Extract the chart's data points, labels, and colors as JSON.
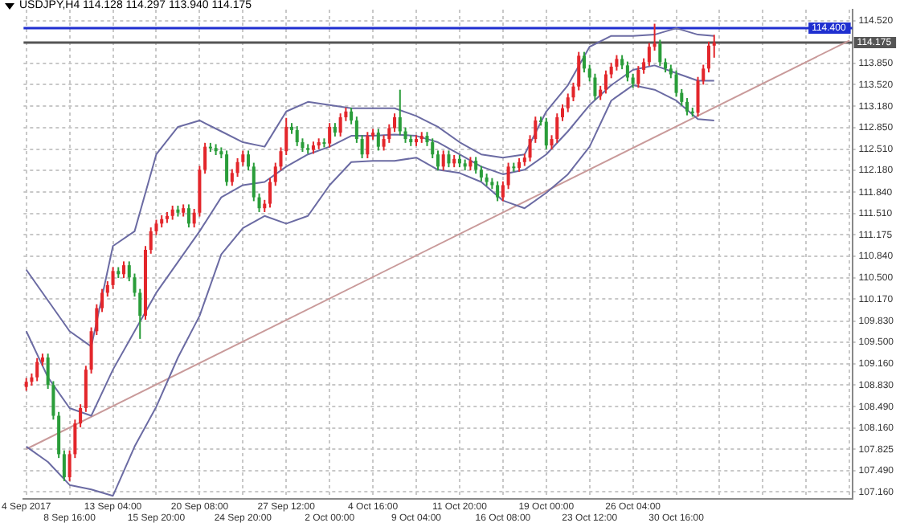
{
  "chart_data": {
    "type": "candlestick",
    "title": "USDJPY,H4 114.128 114.297 113.940 114.175",
    "categories": [
      "4 Sep 2017",
      null,
      null,
      null,
      null,
      null,
      null,
      null,
      "8 Sep 16:00",
      null,
      null,
      null,
      null,
      null,
      null,
      null,
      "13 Sep 04:00",
      null,
      null,
      null,
      null,
      null,
      null,
      null,
      "15 Sep 20:00",
      null,
      null,
      null,
      null,
      null,
      null,
      null,
      "20 Sep 08:00",
      null,
      null,
      null,
      null,
      null,
      null,
      null,
      "24 Sep 20:00",
      null,
      null,
      null,
      null,
      null,
      null,
      null,
      "27 Sep 12:00",
      null,
      null,
      null,
      null,
      null,
      null,
      null,
      "2 Oct 00:00",
      null,
      null,
      null,
      null,
      null,
      null,
      null,
      "4 Oct 16:00",
      null,
      null,
      null,
      null,
      null,
      null,
      null,
      "9 Oct 04:00",
      null,
      null,
      null,
      null,
      null,
      null,
      null,
      "11 Oct 20:00",
      null,
      null,
      null,
      null,
      null,
      null,
      null,
      "16 Oct 08:00",
      null,
      null,
      null,
      null,
      null,
      null,
      null,
      "19 Oct 00:00",
      null,
      null,
      null,
      null,
      null,
      null,
      null,
      "23 Oct 12:00",
      null,
      null,
      null,
      null,
      null,
      null,
      null,
      "26 Oct 04:00",
      null,
      null,
      null,
      null,
      null,
      null,
      null,
      "30 Oct 16:00",
      null,
      null,
      null,
      null,
      null,
      null,
      null,
      null,
      null,
      null,
      null,
      null,
      null,
      null,
      null,
      null,
      null,
      null,
      null,
      null,
      null,
      null,
      null,
      null,
      null,
      null,
      null,
      null,
      null,
      null,
      null,
      null
    ],
    "ohlc": [
      [
        108.8,
        108.94,
        108.74,
        108.88
      ],
      [
        108.88,
        109.01,
        108.82,
        108.95
      ],
      [
        108.95,
        109.25,
        108.89,
        109.19
      ],
      [
        109.19,
        109.32,
        109.13,
        109.26
      ],
      [
        109.26,
        109.32,
        108.77,
        108.83
      ],
      [
        108.83,
        108.89,
        108.29,
        108.35
      ],
      [
        108.35,
        108.41,
        107.69,
        107.75
      ],
      [
        107.75,
        107.81,
        107.33,
        107.39
      ],
      [
        107.39,
        107.81,
        107.33,
        107.75
      ],
      [
        107.75,
        108.29,
        107.69,
        108.23
      ],
      [
        108.23,
        108.53,
        108.17,
        108.47
      ],
      [
        108.47,
        109.13,
        108.41,
        109.07
      ],
      [
        109.07,
        109.73,
        109.01,
        109.67
      ],
      [
        109.67,
        110.09,
        109.61,
        110.03
      ],
      [
        110.03,
        110.33,
        109.97,
        110.27
      ],
      [
        110.27,
        110.45,
        110.21,
        110.39
      ],
      [
        110.39,
        110.67,
        110.33,
        110.61
      ],
      [
        110.61,
        110.67,
        110.5,
        110.56
      ],
      [
        110.56,
        110.76,
        110.5,
        110.7
      ],
      [
        110.7,
        110.76,
        110.45,
        110.51
      ],
      [
        110.51,
        110.57,
        110.21,
        110.27
      ],
      [
        110.27,
        110.33,
        109.55,
        109.91
      ],
      [
        109.91,
        111.0,
        109.85,
        110.94
      ],
      [
        110.94,
        111.29,
        110.88,
        111.23
      ],
      [
        111.23,
        111.41,
        111.17,
        111.35
      ],
      [
        111.35,
        111.48,
        111.29,
        111.42
      ],
      [
        111.42,
        111.53,
        111.36,
        111.47
      ],
      [
        111.47,
        111.63,
        111.41,
        111.57
      ],
      [
        111.57,
        111.63,
        111.46,
        111.52
      ],
      [
        111.52,
        111.65,
        111.46,
        111.59
      ],
      [
        111.59,
        111.65,
        111.29,
        111.35
      ],
      [
        111.35,
        111.58,
        111.29,
        111.52
      ],
      [
        111.52,
        112.25,
        111.46,
        112.19
      ],
      [
        112.19,
        112.61,
        112.13,
        112.55
      ],
      [
        112.55,
        112.61,
        112.47,
        112.53
      ],
      [
        112.53,
        112.59,
        112.42,
        112.48
      ],
      [
        112.48,
        112.54,
        112.37,
        112.43
      ],
      [
        112.43,
        112.49,
        111.94,
        112.0
      ],
      [
        112.0,
        112.2,
        111.94,
        112.14
      ],
      [
        112.14,
        112.37,
        112.08,
        112.31
      ],
      [
        112.31,
        112.49,
        112.25,
        112.43
      ],
      [
        112.43,
        112.49,
        112.18,
        112.24
      ],
      [
        112.24,
        112.3,
        111.7,
        111.76
      ],
      [
        111.76,
        111.82,
        111.53,
        111.59
      ],
      [
        111.59,
        111.72,
        111.53,
        111.66
      ],
      [
        111.66,
        112.06,
        111.6,
        112.0
      ],
      [
        112.0,
        112.3,
        111.94,
        112.24
      ],
      [
        112.24,
        112.54,
        112.18,
        112.48
      ],
      [
        112.48,
        113.0,
        112.42,
        112.86
      ],
      [
        112.86,
        112.92,
        112.75,
        112.81
      ],
      [
        112.81,
        112.87,
        112.56,
        112.62
      ],
      [
        112.62,
        112.68,
        112.47,
        112.53
      ],
      [
        112.53,
        112.59,
        112.44,
        112.5
      ],
      [
        112.5,
        112.63,
        112.44,
        112.57
      ],
      [
        112.57,
        112.68,
        112.51,
        112.62
      ],
      [
        112.62,
        112.68,
        112.54,
        112.6
      ],
      [
        112.6,
        112.92,
        112.54,
        112.86
      ],
      [
        112.86,
        112.92,
        112.71,
        112.77
      ],
      [
        112.77,
        113.07,
        112.71,
        113.01
      ],
      [
        113.01,
        113.16,
        112.95,
        113.1
      ],
      [
        113.1,
        113.16,
        112.9,
        112.96
      ],
      [
        112.96,
        113.02,
        112.61,
        112.67
      ],
      [
        112.67,
        112.73,
        112.37,
        112.43
      ],
      [
        112.43,
        112.78,
        112.37,
        112.72
      ],
      [
        112.72,
        112.83,
        112.66,
        112.77
      ],
      [
        112.77,
        112.83,
        112.49,
        112.55
      ],
      [
        112.55,
        112.73,
        112.49,
        112.67
      ],
      [
        112.67,
        112.9,
        112.61,
        112.84
      ],
      [
        112.84,
        113.07,
        112.78,
        113.01
      ],
      [
        113.01,
        113.44,
        112.73,
        112.79
      ],
      [
        112.79,
        112.85,
        112.61,
        112.67
      ],
      [
        112.67,
        112.73,
        112.56,
        112.62
      ],
      [
        112.62,
        112.73,
        112.56,
        112.67
      ],
      [
        112.67,
        112.78,
        112.61,
        112.72
      ],
      [
        112.72,
        112.78,
        112.56,
        112.62
      ],
      [
        112.62,
        112.68,
        112.37,
        112.43
      ],
      [
        112.43,
        112.49,
        112.18,
        112.24
      ],
      [
        112.24,
        112.49,
        112.18,
        112.43
      ],
      [
        112.43,
        112.49,
        112.23,
        112.29
      ],
      [
        112.29,
        112.42,
        112.23,
        112.36
      ],
      [
        112.36,
        112.42,
        112.23,
        112.29
      ],
      [
        112.29,
        112.35,
        112.18,
        112.24
      ],
      [
        112.24,
        112.39,
        112.18,
        112.33
      ],
      [
        112.33,
        112.39,
        112.13,
        112.19
      ],
      [
        112.19,
        112.25,
        112.01,
        112.07
      ],
      [
        112.07,
        112.13,
        111.94,
        112.0
      ],
      [
        112.0,
        112.06,
        111.89,
        111.95
      ],
      [
        111.95,
        112.01,
        111.7,
        111.76
      ],
      [
        111.76,
        112.01,
        111.7,
        111.95
      ],
      [
        111.95,
        112.3,
        111.89,
        112.24
      ],
      [
        112.24,
        112.3,
        112.16,
        112.22
      ],
      [
        112.22,
        112.37,
        112.16,
        112.31
      ],
      [
        112.31,
        112.44,
        112.25,
        112.38
      ],
      [
        112.38,
        112.73,
        112.32,
        112.67
      ],
      [
        112.67,
        113.02,
        112.61,
        112.96
      ],
      [
        112.96,
        113.02,
        112.88,
        112.94
      ],
      [
        112.94,
        113.0,
        112.51,
        112.57
      ],
      [
        112.57,
        112.73,
        112.51,
        112.67
      ],
      [
        112.67,
        113.07,
        112.61,
        113.01
      ],
      [
        113.01,
        113.21,
        112.95,
        113.15
      ],
      [
        113.15,
        113.38,
        113.09,
        113.32
      ],
      [
        113.32,
        113.55,
        113.26,
        113.49
      ],
      [
        113.49,
        114.03,
        113.43,
        113.97
      ],
      [
        113.97,
        114.03,
        113.71,
        113.77
      ],
      [
        113.77,
        113.83,
        113.57,
        113.63
      ],
      [
        113.63,
        113.69,
        113.28,
        113.34
      ],
      [
        113.34,
        113.5,
        113.28,
        113.44
      ],
      [
        113.44,
        113.74,
        113.38,
        113.68
      ],
      [
        113.68,
        113.86,
        113.62,
        113.8
      ],
      [
        113.8,
        113.98,
        113.74,
        113.92
      ],
      [
        113.92,
        113.98,
        113.76,
        113.82
      ],
      [
        113.82,
        113.88,
        113.57,
        113.63
      ],
      [
        113.63,
        113.69,
        113.47,
        113.53
      ],
      [
        113.53,
        113.81,
        113.47,
        113.75
      ],
      [
        113.75,
        113.93,
        113.69,
        113.87
      ],
      [
        113.87,
        114.17,
        113.81,
        114.11
      ],
      [
        114.11,
        114.47,
        114.05,
        114.16
      ],
      [
        114.16,
        114.22,
        113.81,
        113.87
      ],
      [
        113.87,
        113.93,
        113.71,
        113.77
      ],
      [
        113.77,
        113.83,
        113.62,
        113.68
      ],
      [
        113.68,
        113.74,
        113.33,
        113.39
      ],
      [
        113.39,
        113.45,
        113.19,
        113.25
      ],
      [
        113.25,
        113.31,
        113.04,
        113.1
      ],
      [
        113.1,
        113.16,
        113.02,
        113.08
      ],
      [
        113.08,
        113.64,
        113.02,
        113.58
      ],
      [
        113.58,
        113.83,
        113.52,
        113.77
      ],
      [
        113.77,
        114.19,
        113.71,
        114.128
      ],
      [
        114.128,
        114.297,
        113.94,
        114.175
      ],
      null,
      null,
      null,
      null,
      null,
      null,
      null,
      null,
      null,
      null,
      null,
      null,
      null,
      null,
      null,
      null,
      null,
      null,
      null,
      null,
      null,
      null,
      null,
      null,
      null
    ],
    "colors": [
      "#e3262b",
      "#e3262b",
      "#e3262b",
      "#e3262b",
      "#2a9d3a",
      "#2a9d3a",
      "#2a9d3a",
      "#2a9d3a",
      "#e3262b",
      "#e3262b",
      "#e3262b",
      "#e3262b",
      "#e3262b",
      "#e3262b",
      "#e3262b",
      "#e3262b",
      "#e3262b",
      "#2a9d3a",
      "#e3262b",
      "#2a9d3a",
      "#2a9d3a",
      "#2a9d3a",
      "#e3262b",
      "#e3262b",
      "#e3262b",
      "#e3262b",
      "#e3262b",
      "#e3262b",
      "#2a9d3a",
      "#e3262b",
      "#2a9d3a",
      "#e3262b",
      "#e3262b",
      "#e3262b",
      "#2a9d3a",
      "#2a9d3a",
      "#2a9d3a",
      "#2a9d3a",
      "#e3262b",
      "#e3262b",
      "#e3262b",
      "#2a9d3a",
      "#2a9d3a",
      "#2a9d3a",
      "#e3262b",
      "#e3262b",
      "#e3262b",
      "#e3262b",
      "#e3262b",
      "#2a9d3a",
      "#2a9d3a",
      "#2a9d3a",
      "#2a9d3a",
      "#e3262b",
      "#e3262b",
      "#2a9d3a",
      "#e3262b",
      "#2a9d3a",
      "#e3262b",
      "#e3262b",
      "#2a9d3a",
      "#2a9d3a",
      "#2a9d3a",
      "#e3262b",
      "#e3262b",
      "#2a9d3a",
      "#e3262b",
      "#e3262b",
      "#e3262b",
      "#2a9d3a",
      "#2a9d3a",
      "#2a9d3a",
      "#e3262b",
      "#e3262b",
      "#2a9d3a",
      "#2a9d3a",
      "#2a9d3a",
      "#e3262b",
      "#2a9d3a",
      "#e3262b",
      "#2a9d3a",
      "#2a9d3a",
      "#e3262b",
      "#2a9d3a",
      "#2a9d3a",
      "#2a9d3a",
      "#2a9d3a",
      "#2a9d3a",
      "#e3262b",
      "#e3262b",
      "#2a9d3a",
      "#e3262b",
      "#e3262b",
      "#e3262b",
      "#e3262b",
      "#2a9d3a",
      "#2a9d3a",
      "#e3262b",
      "#e3262b",
      "#e3262b",
      "#e3262b",
      "#e3262b",
      "#e3262b",
      "#2a9d3a",
      "#2a9d3a",
      "#2a9d3a",
      "#e3262b",
      "#e3262b",
      "#e3262b",
      "#e3262b",
      "#2a9d3a",
      "#2a9d3a",
      "#2a9d3a",
      "#e3262b",
      "#e3262b",
      "#e3262b",
      "#e3262b",
      "#2a9d3a",
      "#2a9d3a",
      "#2a9d3a",
      "#2a9d3a",
      "#2a9d3a",
      "#2a9d3a",
      "#2a9d3a",
      "#e3262b",
      "#e3262b",
      "#e3262b",
      "#e3262b",
      null,
      null,
      null,
      null,
      null,
      null,
      null,
      null,
      null,
      null,
      null,
      null,
      null,
      null,
      null,
      null,
      null,
      null,
      null,
      null,
      null,
      null,
      null,
      null,
      null
    ],
    "series": [
      {
        "type": "line",
        "color": "#6b6ba3",
        "values": [
          110.63,
          null,
          null,
          null,
          110.15,
          null,
          null,
          null,
          109.67,
          null,
          null,
          null,
          109.43,
          null,
          null,
          null,
          111.0,
          null,
          null,
          null,
          111.23,
          null,
          null,
          null,
          112.43,
          null,
          null,
          null,
          112.86,
          null,
          null,
          null,
          112.96,
          null,
          null,
          null,
          112.79,
          null,
          null,
          null,
          112.62,
          null,
          null,
          null,
          112.55,
          null,
          null,
          null,
          113.1,
          null,
          null,
          null,
          113.25,
          null,
          null,
          null,
          113.2,
          null,
          null,
          null,
          113.15,
          null,
          null,
          null,
          113.15,
          null,
          null,
          null,
          113.15,
          null,
          null,
          null,
          113.03,
          null,
          null,
          null,
          112.86,
          null,
          null,
          null,
          112.62,
          null,
          null,
          null,
          112.43,
          null,
          null,
          null,
          112.38,
          null,
          null,
          null,
          112.43,
          null,
          null,
          null,
          113.1,
          null,
          null,
          null,
          113.51,
          null,
          null,
          null,
          114.11,
          null,
          null,
          null,
          114.28,
          null,
          null,
          null,
          114.28,
          null,
          null,
          null,
          114.3,
          null,
          null,
          null,
          114.4,
          null,
          null,
          null,
          114.3,
          null,
          null,
          114.28,
          null,
          null,
          null,
          null,
          null,
          null,
          null,
          null,
          null,
          null,
          null,
          null,
          null,
          null,
          null,
          null,
          null,
          null,
          null,
          null,
          null,
          null,
          null,
          null,
          null
        ]
      },
      {
        "type": "line",
        "color": "#6b6ba3",
        "values": [
          109.67,
          null,
          null,
          null,
          108.95,
          null,
          null,
          null,
          108.47,
          null,
          null,
          null,
          108.35,
          null,
          null,
          null,
          109.07,
          null,
          null,
          null,
          109.67,
          null,
          null,
          null,
          110.27,
          null,
          null,
          null,
          110.75,
          null,
          null,
          null,
          111.23,
          null,
          null,
          null,
          111.76,
          null,
          null,
          null,
          111.95,
          null,
          null,
          null,
          112.0,
          null,
          null,
          null,
          112.24,
          null,
          null,
          null,
          112.43,
          null,
          null,
          null,
          112.55,
          null,
          null,
          null,
          112.72,
          null,
          null,
          null,
          112.72,
          null,
          null,
          null,
          112.74,
          null,
          null,
          null,
          112.72,
          null,
          null,
          null,
          112.62,
          null,
          null,
          null,
          112.43,
          null,
          null,
          null,
          112.24,
          null,
          null,
          null,
          112.12,
          null,
          null,
          null,
          112.19,
          null,
          null,
          null,
          112.43,
          null,
          null,
          null,
          112.79,
          null,
          null,
          null,
          113.2,
          null,
          null,
          null,
          113.51,
          null,
          null,
          null,
          113.75,
          null,
          null,
          null,
          113.82,
          null,
          null,
          null,
          113.7,
          null,
          null,
          null,
          113.58,
          null,
          null,
          113.58,
          null,
          null,
          null,
          null,
          null,
          null,
          null,
          null,
          null,
          null,
          null,
          null,
          null,
          null,
          null,
          null,
          null,
          null,
          null,
          null,
          null,
          null,
          null,
          null,
          null
        ]
      },
      {
        "type": "line",
        "color": "#6b6ba3",
        "values": [
          107.87,
          null,
          null,
          null,
          107.63,
          null,
          null,
          null,
          107.27,
          null,
          null,
          null,
          107.2,
          null,
          null,
          null,
          107.1,
          null,
          null,
          null,
          107.87,
          null,
          null,
          null,
          108.49,
          null,
          null,
          null,
          109.26,
          null,
          null,
          null,
          109.91,
          null,
          null,
          null,
          110.87,
          null,
          null,
          null,
          111.28,
          null,
          null,
          null,
          111.47,
          null,
          null,
          null,
          111.35,
          null,
          null,
          null,
          111.47,
          null,
          null,
          null,
          111.95,
          null,
          null,
          null,
          112.31,
          null,
          null,
          null,
          112.33,
          null,
          null,
          null,
          112.33,
          null,
          null,
          null,
          112.38,
          null,
          null,
          null,
          112.19,
          null,
          null,
          null,
          112.14,
          null,
          null,
          null,
          112.0,
          null,
          null,
          null,
          111.71,
          null,
          null,
          null,
          111.59,
          null,
          null,
          null,
          111.83,
          null,
          null,
          null,
          112.12,
          null,
          null,
          null,
          112.55,
          null,
          null,
          null,
          113.27,
          null,
          null,
          null,
          113.51,
          null,
          null,
          null,
          113.44,
          null,
          null,
          null,
          113.27,
          null,
          null,
          null,
          112.98,
          null,
          null,
          112.96,
          null,
          null,
          null,
          null,
          null,
          null,
          null,
          null,
          null,
          null,
          null,
          null,
          null,
          null,
          null,
          null,
          null,
          null,
          null,
          null,
          null,
          null,
          null,
          null,
          null
        ]
      },
      {
        "type": "line",
        "color": "#c99a9a",
        "values": [
          107.83,
          null,
          null,
          null,
          null,
          null,
          null,
          null,
          null,
          null,
          null,
          null,
          null,
          null,
          null,
          null,
          null,
          null,
          null,
          null,
          null,
          null,
          null,
          null,
          null,
          null,
          null,
          null,
          null,
          null,
          null,
          null,
          null,
          null,
          null,
          null,
          null,
          null,
          null,
          null,
          null,
          null,
          null,
          null,
          null,
          null,
          null,
          null,
          null,
          null,
          null,
          null,
          null,
          null,
          null,
          null,
          null,
          null,
          null,
          null,
          null,
          null,
          null,
          null,
          null,
          null,
          null,
          null,
          null,
          null,
          null,
          null,
          null,
          null,
          null,
          null,
          null,
          null,
          null,
          null,
          null,
          null,
          null,
          null,
          null,
          null,
          null,
          null,
          null,
          null,
          null,
          null,
          null,
          null,
          null,
          null,
          null,
          null,
          null,
          null,
          null,
          null,
          null,
          null,
          null,
          null,
          null,
          null,
          null,
          null,
          null,
          null,
          null,
          null,
          null,
          null,
          null,
          null,
          null,
          null,
          null,
          null,
          null,
          null,
          null,
          null,
          null,
          null,
          null,
          null,
          null,
          null,
          null,
          null,
          null,
          null,
          null,
          null,
          null,
          null,
          null,
          null,
          null,
          null,
          null,
          null,
          null,
          null,
          null,
          null,
          null,
          null,
          114.21
        ]
      }
    ],
    "ylim": [
      107.05,
      114.69
    ],
    "yticks": [
      {
        "value": 107.16,
        "label": "107.160"
      },
      {
        "value": 107.49,
        "label": "107.490"
      },
      {
        "value": 107.825,
        "label": "107.825"
      },
      {
        "value": 108.16,
        "label": "108.160"
      },
      {
        "value": 108.49,
        "label": "108.490"
      },
      {
        "value": 108.83,
        "label": "108.830"
      },
      {
        "value": 109.16,
        "label": "109.160"
      },
      {
        "value": 109.5,
        "label": "109.500"
      },
      {
        "value": 109.83,
        "label": "109.830"
      },
      {
        "value": 110.17,
        "label": "110.170"
      },
      {
        "value": 110.5,
        "label": "110.500"
      },
      {
        "value": 110.84,
        "label": "110.840"
      },
      {
        "value": 111.175,
        "label": "111.175"
      },
      {
        "value": 111.51,
        "label": "111.510"
      },
      {
        "value": 111.84,
        "label": "111.840"
      },
      {
        "value": 112.18,
        "label": "112.180"
      },
      {
        "value": 112.51,
        "label": "112.510"
      },
      {
        "value": 112.85,
        "label": "112.850"
      },
      {
        "value": 113.18,
        "label": "113.180"
      },
      {
        "value": 113.52,
        "label": "113.520"
      },
      {
        "value": 113.85,
        "label": "113.850"
      },
      {
        "value": 114.52,
        "label": "114.520"
      }
    ],
    "ref_lines": [
      {
        "axis": "y",
        "value": 114.4,
        "label": "114.400",
        "color": "#1f2fd0"
      },
      {
        "axis": "y",
        "value": 114.175,
        "label": "114.175",
        "color": "#555555"
      }
    ],
    "grid": true
  }
}
